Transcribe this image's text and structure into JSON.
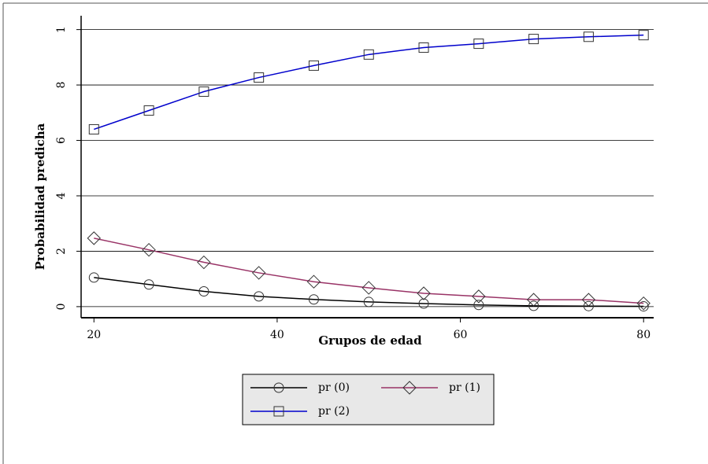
{
  "chart_data": {
    "type": "line",
    "y_label": "Probabilidad predicha",
    "x_label": "Grupos de edad",
    "x": [
      20,
      26,
      32,
      38,
      44,
      50,
      56,
      62,
      68,
      74,
      80
    ],
    "series": [
      {
        "name": "pr (0)",
        "color": "#000000",
        "marker": "circle",
        "values": [
          0.105,
          0.08,
          0.055,
          0.037,
          0.026,
          0.017,
          0.011,
          0.006,
          0.003,
          0.002,
          0.001
        ]
      },
      {
        "name": "pr (1)",
        "color": "#993366",
        "marker": "diamond",
        "values": [
          0.247,
          0.205,
          0.16,
          0.122,
          0.09,
          0.068,
          0.048,
          0.037,
          0.025,
          0.025,
          0.012
        ]
      },
      {
        "name": "pr (2)",
        "color": "#0000cc",
        "marker": "square",
        "values": [
          0.64,
          0.708,
          0.776,
          0.827,
          0.87,
          0.91,
          0.935,
          0.949,
          0.966,
          0.974,
          0.98
        ]
      }
    ],
    "xlim": [
      18.6,
      81.1
    ],
    "ylim": [
      -0.04,
      1.05
    ],
    "xticks": [
      20,
      40,
      60,
      80
    ],
    "yticks": [
      0,
      {
        "value": 0.2,
        "label": "2"
      },
      {
        "value": 0.4,
        "label": "4"
      },
      {
        "value": 0.6,
        "label": "6"
      },
      {
        "value": 0.8,
        "label": "8"
      },
      1
    ],
    "grid": true
  }
}
